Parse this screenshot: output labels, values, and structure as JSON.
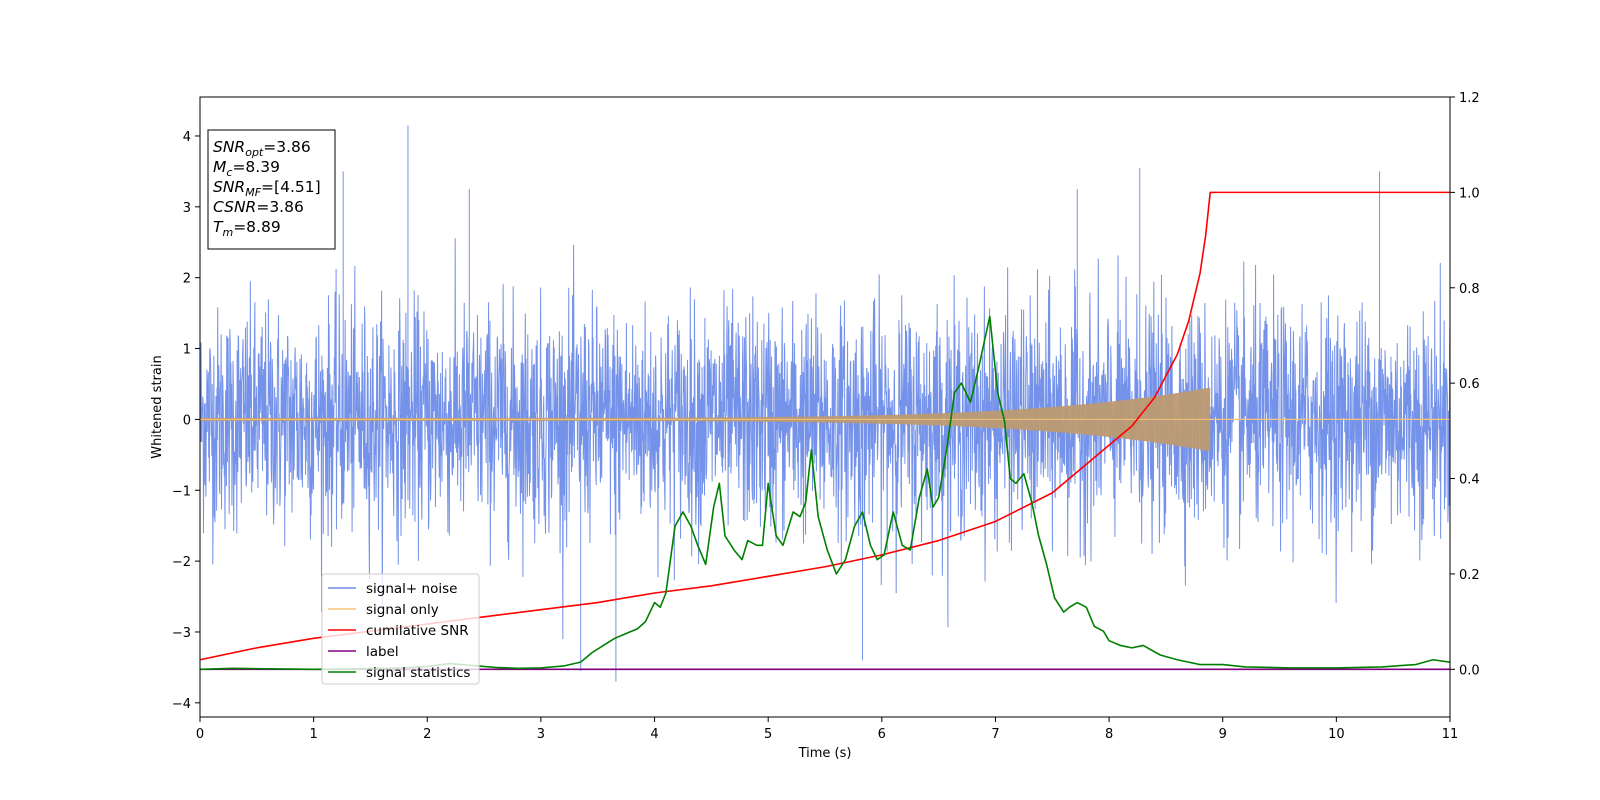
{
  "chart_data": {
    "type": "line",
    "xlabel": "Time (s)",
    "ylabel": "Whitened strain",
    "xlim": [
      0,
      11
    ],
    "ylim_left": [
      -4.2,
      4.55
    ],
    "ylim_right": [
      -0.1,
      1.2
    ],
    "x_ticks": [
      0,
      1,
      2,
      3,
      4,
      5,
      6,
      7,
      8,
      9,
      10,
      11
    ],
    "x_tick_labels": [
      "0",
      "1",
      "2",
      "3",
      "4",
      "5",
      "6",
      "7",
      "8",
      "9",
      "10",
      "11"
    ],
    "y_left_ticks": [
      -4,
      -3,
      -2,
      -1,
      0,
      1,
      2,
      3,
      4
    ],
    "y_left_tick_labels": [
      "−4",
      "−3",
      "−2",
      "−1",
      "0",
      "1",
      "2",
      "3",
      "4"
    ],
    "y_right_ticks": [
      0.0,
      0.2,
      0.4,
      0.6,
      0.8,
      1.0,
      1.2
    ],
    "y_right_tick_labels": [
      "0.0",
      "0.2",
      "0.4",
      "0.6",
      "0.8",
      "1.0",
      "1.2"
    ],
    "legend": {
      "placement": "lower-left",
      "entries": [
        {
          "label": "signal+ noise",
          "color": "#6d8ce8"
        },
        {
          "label": "signal only",
          "color": "#f5c477"
        },
        {
          "label": "cumilative SNR",
          "color": "#ff0000"
        },
        {
          "label": "label",
          "color": "#800080"
        },
        {
          "label": "signal statistics",
          "color": "#008000"
        }
      ]
    },
    "stats_box": {
      "placement": "top-left",
      "lines": [
        {
          "var": "SNR",
          "sub": "opt",
          "value": "=3.86"
        },
        {
          "var": "M",
          "sub": "c",
          "value": "=8.39"
        },
        {
          "var": "SNR",
          "sub": "MF",
          "value": "=[4.51]"
        },
        {
          "var": "CSNR",
          "sub": "",
          "value": "=3.86"
        },
        {
          "var": "T",
          "sub": "m",
          "value": "=8.89"
        }
      ]
    },
    "series": [
      {
        "name": "signal+ noise",
        "axis": "left",
        "color": "#6d8ce8",
        "kind": "noise",
        "typical_range": [
          -1.6,
          1.6
        ],
        "extreme_range": [
          -3.7,
          4.15
        ],
        "notable_peaks": [
          {
            "x": 1.83,
            "y": 4.15
          },
          {
            "x": 2.37,
            "y": 3.25
          },
          {
            "x": 1.26,
            "y": 3.5
          },
          {
            "x": 8.27,
            "y": 3.55
          },
          {
            "x": 10.38,
            "y": 3.5
          },
          {
            "x": 7.72,
            "y": 3.25
          },
          {
            "x": 3.35,
            "y": -3.55
          },
          {
            "x": 3.66,
            "y": -3.7
          },
          {
            "x": 5.83,
            "y": -3.4
          }
        ]
      },
      {
        "name": "signal only",
        "axis": "left",
        "color": "#bc9a72",
        "kind": "chirp",
        "start_amplitude": 0.02,
        "end_amplitude": 0.45,
        "merger_time": 8.89
      },
      {
        "name": "cumilative SNR",
        "axis": "right",
        "color": "#ff0000",
        "x": [
          0,
          0.5,
          1,
          1.5,
          2,
          2.5,
          3,
          3.5,
          4,
          4.5,
          5,
          5.5,
          6,
          6.5,
          7,
          7.5,
          8,
          8.2,
          8.4,
          8.6,
          8.7,
          8.8,
          8.85,
          8.89,
          9,
          10,
          11
        ],
        "y": [
          0.02,
          0.045,
          0.065,
          0.08,
          0.095,
          0.11,
          0.125,
          0.14,
          0.16,
          0.175,
          0.195,
          0.215,
          0.24,
          0.27,
          0.31,
          0.37,
          0.47,
          0.51,
          0.57,
          0.66,
          0.73,
          0.83,
          0.91,
          1.0,
          1.0,
          1.0,
          1.0
        ]
      },
      {
        "name": "label",
        "axis": "right",
        "color": "#800080",
        "x": [
          0,
          11
        ],
        "y": [
          0.0,
          0.0
        ]
      },
      {
        "name": "signal statistics",
        "axis": "right",
        "color": "#008000",
        "x": [
          0,
          0.3,
          0.6,
          1.0,
          1.4,
          1.8,
          2.0,
          2.2,
          2.4,
          2.6,
          2.8,
          3.0,
          3.2,
          3.35,
          3.45,
          3.55,
          3.65,
          3.75,
          3.85,
          3.92,
          4.0,
          4.05,
          4.1,
          4.18,
          4.25,
          4.32,
          4.38,
          4.45,
          4.52,
          4.57,
          4.62,
          4.7,
          4.77,
          4.82,
          4.9,
          4.95,
          5.0,
          5.07,
          5.13,
          5.22,
          5.28,
          5.33,
          5.38,
          5.44,
          5.52,
          5.6,
          5.68,
          5.76,
          5.83,
          5.9,
          5.96,
          6.02,
          6.1,
          6.18,
          6.25,
          6.33,
          6.4,
          6.45,
          6.5,
          6.57,
          6.64,
          6.7,
          6.78,
          6.85,
          6.95,
          7.02,
          7.08,
          7.13,
          7.18,
          7.25,
          7.32,
          7.38,
          7.45,
          7.52,
          7.6,
          7.65,
          7.72,
          7.8,
          7.87,
          7.95,
          8.0,
          8.1,
          8.2,
          8.3,
          8.45,
          8.6,
          8.8,
          9.0,
          9.2,
          9.6,
          10.0,
          10.4,
          10.7,
          10.85,
          11.0
        ],
        "y": [
          0.0,
          0.002,
          0.001,
          0.0,
          0.001,
          0.003,
          0.006,
          0.012,
          0.008,
          0.004,
          0.002,
          0.003,
          0.007,
          0.015,
          0.035,
          0.05,
          0.065,
          0.075,
          0.085,
          0.1,
          0.14,
          0.13,
          0.16,
          0.3,
          0.33,
          0.3,
          0.26,
          0.22,
          0.34,
          0.39,
          0.28,
          0.25,
          0.23,
          0.27,
          0.26,
          0.26,
          0.39,
          0.28,
          0.26,
          0.33,
          0.32,
          0.35,
          0.46,
          0.32,
          0.25,
          0.2,
          0.23,
          0.3,
          0.33,
          0.26,
          0.23,
          0.24,
          0.33,
          0.26,
          0.25,
          0.36,
          0.42,
          0.34,
          0.36,
          0.46,
          0.58,
          0.6,
          0.56,
          0.63,
          0.74,
          0.58,
          0.52,
          0.4,
          0.39,
          0.41,
          0.35,
          0.28,
          0.22,
          0.15,
          0.12,
          0.13,
          0.14,
          0.13,
          0.09,
          0.08,
          0.06,
          0.05,
          0.045,
          0.05,
          0.03,
          0.02,
          0.01,
          0.01,
          0.005,
          0.003,
          0.003,
          0.005,
          0.01,
          0.02,
          0.015
        ]
      }
    ]
  }
}
